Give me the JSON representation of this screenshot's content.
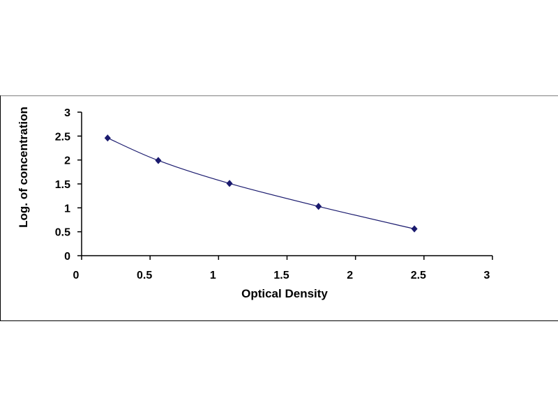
{
  "chart_data": {
    "type": "scatter",
    "title": "",
    "xlabel": "Optical Density",
    "ylabel": "Log. of concentration",
    "xlim": [
      0,
      3
    ],
    "ylim": [
      0,
      3
    ],
    "x_ticks": [
      "0",
      "0.5",
      "1",
      "1.5",
      "2",
      "2.5",
      "3"
    ],
    "y_ticks": [
      "0",
      "0.5",
      "1",
      "1.5",
      "2",
      "2.5",
      "3"
    ],
    "grid": false,
    "legend": "none",
    "series": [
      {
        "points": [
          {
            "x": 0.19,
            "y": 2.46
          },
          {
            "x": 0.56,
            "y": 1.99
          },
          {
            "x": 1.08,
            "y": 1.51
          },
          {
            "x": 1.73,
            "y": 1.03
          },
          {
            "x": 2.43,
            "y": 0.56
          }
        ],
        "trendline": true
      }
    ],
    "colors": {
      "marker": "#1a1a6e",
      "line": "#1a1a6e",
      "axis": "#000000",
      "frame": "#000000"
    }
  }
}
